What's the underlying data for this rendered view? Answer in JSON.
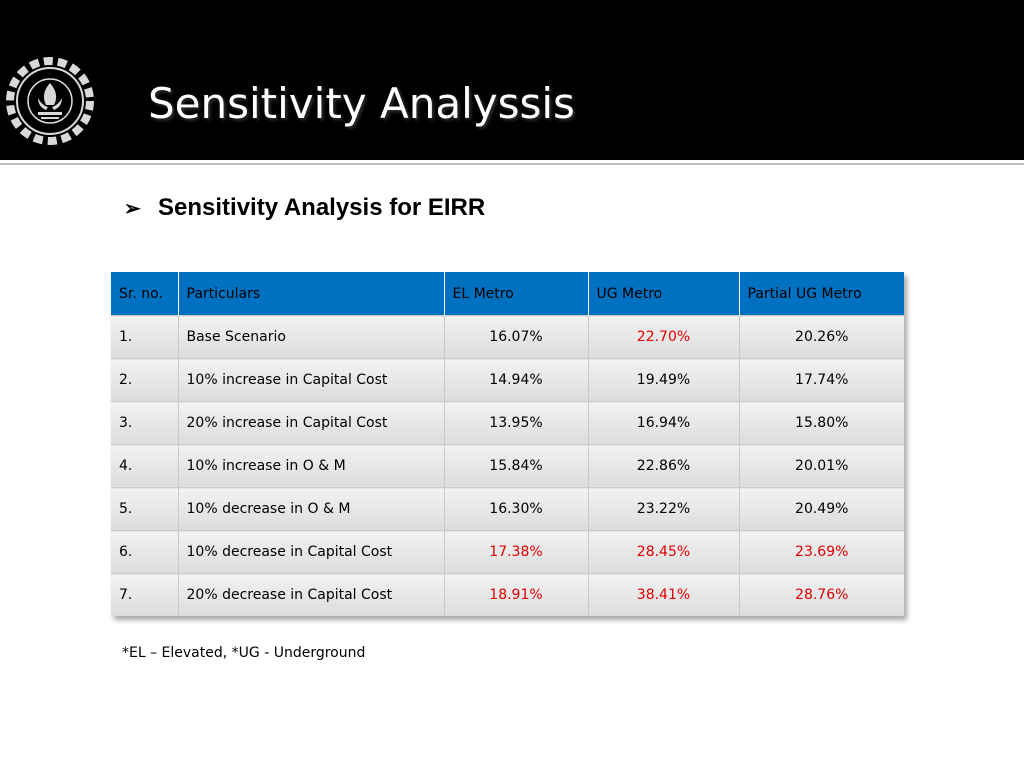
{
  "slide": {
    "title": "Sensitivity Analyssis",
    "subheading_bullet": "➢",
    "subheading": "Sensitivity Analysis for EIRR",
    "footnote": "*EL – Elevated, *UG - Underground"
  },
  "table": {
    "headers": [
      "Sr. no.",
      "Particulars",
      "EL  Metro",
      "UG Metro",
      "Partial UG Metro"
    ],
    "rows": [
      {
        "sr": "1.",
        "particular": "Base Scenario",
        "el": "16.07%",
        "ug": "22.70%",
        "partial": "20.26%"
      },
      {
        "sr": "2.",
        "particular": "10% increase in Capital Cost",
        "el": "14.94%",
        "ug": "19.49%",
        "partial": "17.74%"
      },
      {
        "sr": "3.",
        "particular": "20% increase in Capital Cost",
        "el": "13.95%",
        "ug": "16.94%",
        "partial": "15.80%"
      },
      {
        "sr": "4.",
        "particular": "10% increase in O & M",
        "el": "15.84%",
        "ug": "22.86%",
        "partial": "20.01%"
      },
      {
        "sr": "5.",
        "particular": "10% decrease in O & M",
        "el": "16.30%",
        "ug": "23.22%",
        "partial": "20.49%"
      },
      {
        "sr": "6.",
        "particular": "10% decrease in Capital Cost",
        "el": "17.38%",
        "ug": "28.45%",
        "partial": "23.69%"
      },
      {
        "sr": "7.",
        "particular": "20% decrease in Capital Cost",
        "el": "18.91%",
        "ug": "38.41%",
        "partial": "28.76%"
      }
    ]
  },
  "colors": {
    "header_band": "#000000",
    "table_header": "#0070c0",
    "highlight_red": "#e00000"
  },
  "icons": {
    "logo": "institute-gear-emblem-logo"
  }
}
